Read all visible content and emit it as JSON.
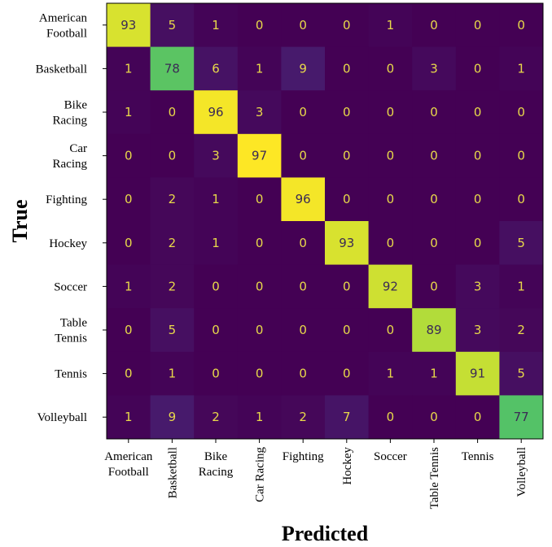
{
  "chart_data": {
    "type": "heatmap",
    "xlabel": "Predicted",
    "ylabel": "True",
    "row_labels": [
      "American\nFootball",
      "Basketball",
      "Bike\nRacing",
      "Car\nRacing",
      "Fighting",
      "Hockey",
      "Soccer",
      "Table\nTennis",
      "Tennis",
      "Volleyball"
    ],
    "col_labels": [
      "American\nFootball",
      "Basketball",
      "Bike\nRacing",
      "Car Racing",
      "Fighting",
      "Hockey",
      "Soccer",
      "Table Tennis",
      "Tennis",
      "Volleyball"
    ],
    "col_label_rotated": [
      false,
      true,
      false,
      true,
      false,
      true,
      false,
      true,
      false,
      true
    ],
    "values": [
      [
        93,
        5,
        1,
        0,
        0,
        0,
        1,
        0,
        0,
        0
      ],
      [
        1,
        78,
        6,
        1,
        9,
        0,
        0,
        3,
        0,
        1
      ],
      [
        1,
        0,
        96,
        3,
        0,
        0,
        0,
        0,
        0,
        0
      ],
      [
        0,
        0,
        3,
        97,
        0,
        0,
        0,
        0,
        0,
        0
      ],
      [
        0,
        2,
        1,
        0,
        96,
        0,
        0,
        0,
        0,
        0
      ],
      [
        0,
        2,
        1,
        0,
        0,
        93,
        0,
        0,
        0,
        5
      ],
      [
        1,
        2,
        0,
        0,
        0,
        0,
        92,
        0,
        3,
        1
      ],
      [
        0,
        5,
        0,
        0,
        0,
        0,
        0,
        89,
        3,
        2
      ],
      [
        0,
        1,
        0,
        0,
        0,
        0,
        1,
        1,
        91,
        5
      ],
      [
        1,
        9,
        2,
        1,
        2,
        7,
        0,
        0,
        0,
        77
      ]
    ],
    "value_range": [
      0,
      97
    ],
    "colormap": "viridis",
    "grid": false
  }
}
